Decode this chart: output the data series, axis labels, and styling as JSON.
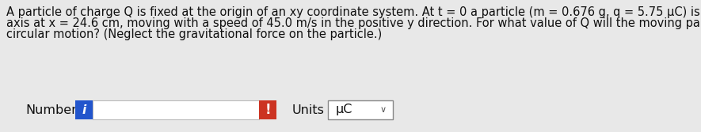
{
  "background_color": "#e8e8e8",
  "text_lines": [
    "A particle of charge Q is fixed at the origin of an xy coordinate system. At t = 0 a particle (m = 0.676 g, q = 5.75 μC) is located on the x",
    "axis at x = 24.6 cm, moving with a speed of 45.0 m/s in the positive y direction. For what value of Q will the moving particle execute",
    "circular motion? (Neglect the gravitational force on the particle.)"
  ],
  "number_label": "Number",
  "units_label": "Units",
  "units_value": "μC",
  "blue_btn_color": "#2255cc",
  "red_btn_color": "#cc3322",
  "input_border": "#bbbbbb",
  "dropdown_border": "#888888",
  "text_color": "#111111",
  "font_size": 10.5,
  "widget_font_size": 11.5,
  "fig_width": 8.85,
  "fig_height": 1.67,
  "dpi": 100
}
